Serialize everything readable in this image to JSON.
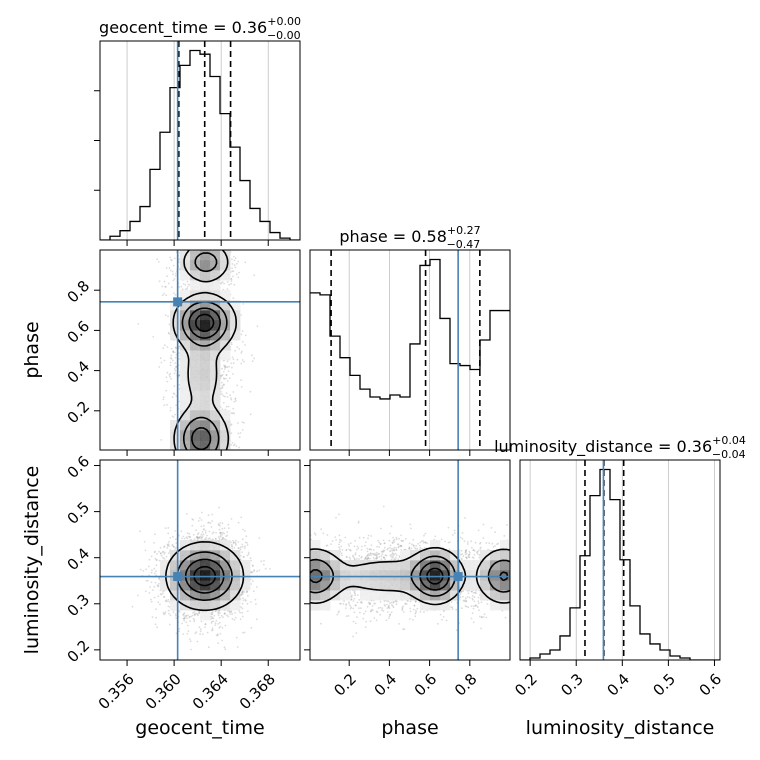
{
  "chart_data": {
    "type": "corner",
    "parameters": [
      "geocent_time",
      "phase",
      "luminosity_distance"
    ],
    "truths": {
      "geocent_time": 0.3603,
      "phase": 0.742,
      "luminosity_distance": 0.359
    },
    "colors": {
      "truth": "#4682b4",
      "hist": "#000000",
      "grid": "#c0c0c0",
      "density": "#000000"
    },
    "grid": true,
    "titles": [
      {
        "param": "geocent_time",
        "label": "geocent_time = 0.36",
        "upper": "+0.00",
        "lower": "−0.00"
      },
      {
        "param": "phase",
        "label": "phase = 0.58",
        "upper": "+0.27",
        "lower": "−0.47"
      },
      {
        "param": "luminosity_distance",
        "label": "luminosity_distance = 0.36",
        "upper": "+0.04",
        "lower": "−0.04"
      }
    ],
    "axes": {
      "geocent_time": {
        "range": [
          0.3537,
          0.3707
        ],
        "ticks": [
          0.356,
          0.36,
          0.364,
          0.368
        ],
        "tick_labels": [
          "0.356",
          "0.360",
          "0.364",
          "0.368"
        ]
      },
      "phase": {
        "range": [
          0.005,
          1.0
        ],
        "ticks": [
          0.2,
          0.4,
          0.6,
          0.8
        ],
        "tick_labels": [
          "0.2",
          "0.4",
          "0.6",
          "0.8"
        ]
      },
      "luminosity_distance": {
        "range": [
          0.178,
          0.612
        ],
        "ticks": [
          0.2,
          0.3,
          0.4,
          0.5,
          0.6
        ],
        "tick_labels": [
          "0.2",
          "0.3",
          "0.4",
          "0.5",
          "0.6"
        ]
      }
    },
    "marginals": [
      {
        "param": "geocent_time",
        "edges": [
          0.3537,
          0.35455,
          0.3554,
          0.35625,
          0.3571,
          0.35795,
          0.3588,
          0.35965,
          0.3605,
          0.36135,
          0.3622,
          0.36305,
          0.3639,
          0.36475,
          0.3656,
          0.36645,
          0.3673,
          0.36815,
          0.369,
          0.36985,
          0.3707
        ],
        "counts": [
          0,
          2,
          5,
          10,
          18,
          38,
          58,
          82,
          94,
          102,
          100,
          88,
          68,
          50,
          32,
          17,
          10,
          4,
          1,
          0
        ],
        "quantiles": [
          0.3604,
          0.3626,
          0.3648
        ]
      },
      {
        "param": "phase",
        "edges": [
          0.005,
          0.05475,
          0.1045,
          0.15425,
          0.204,
          0.25375,
          0.3035,
          0.35325,
          0.403,
          0.45275,
          0.5025,
          0.55225,
          0.602,
          0.65175,
          0.7015,
          0.75125,
          0.801,
          0.85075,
          0.9005,
          0.95025,
          1.0
        ],
        "counts": [
          80,
          79,
          58,
          47,
          38,
          31,
          27,
          26,
          28,
          27,
          54,
          94,
          97,
          67,
          44,
          43,
          41,
          56,
          71,
          71
        ],
        "quantiles": [
          0.11,
          0.58,
          0.85
        ]
      },
      {
        "param": "luminosity_distance",
        "edges": [
          0.178,
          0.1997,
          0.2214,
          0.2431,
          0.2648,
          0.2865,
          0.3082,
          0.3299,
          0.3516,
          0.3733,
          0.395,
          0.4167,
          0.4384,
          0.4601,
          0.4818,
          0.5035,
          0.5252,
          0.5469,
          0.5686,
          0.5903,
          0.612
        ],
        "counts": [
          0,
          1,
          3,
          5,
          12,
          26,
          52,
          82,
          95,
          80,
          50,
          27,
          13,
          8,
          5,
          2,
          1,
          0,
          0,
          0
        ],
        "quantiles": [
          0.319,
          0.36,
          0.403
        ]
      }
    ],
    "pairs": [
      {
        "x": "geocent_time",
        "y": "phase",
        "cloud": [
          {
            "cx": 0.3626,
            "cy": 0.5,
            "sx": 0.0014,
            "sy": 0.28,
            "n": 1600
          },
          {
            "cx": 0.3625,
            "cy": 0.07,
            "sx": 0.0012,
            "sy": 0.06,
            "n": 500
          },
          {
            "cx": 0.3624,
            "cy": 0.93,
            "sx": 0.0012,
            "sy": 0.05,
            "n": 500
          }
        ],
        "blobs": [
          {
            "cx": 0.3627,
            "cy": 0.94,
            "sx": 0.0011,
            "sy": 0.055,
            "w": 0.5
          },
          {
            "cx": 0.3626,
            "cy": 0.64,
            "sx": 0.0013,
            "sy": 0.07,
            "w": 1.0
          },
          {
            "cx": 0.3624,
            "cy": 0.38,
            "sx": 0.0011,
            "sy": 0.12,
            "w": 0.22
          },
          {
            "cx": 0.3623,
            "cy": 0.06,
            "sx": 0.0012,
            "sy": 0.08,
            "w": 0.75
          }
        ]
      },
      {
        "x": "geocent_time",
        "y": "luminosity_distance",
        "cloud": [
          {
            "cx": 0.3626,
            "cy": 0.36,
            "sx": 0.0017,
            "sy": 0.045,
            "n": 3000
          }
        ],
        "blobs": [
          {
            "cx": 0.3626,
            "cy": 0.36,
            "sx": 0.0016,
            "sy": 0.036,
            "w": 1.0
          }
        ]
      },
      {
        "x": "phase",
        "y": "luminosity_distance",
        "cloud": [
          {
            "cx": 0.5,
            "cy": 0.36,
            "sx": 0.3,
            "sy": 0.04,
            "n": 2600
          }
        ],
        "blobs": [
          {
            "cx": 0.63,
            "cy": 0.36,
            "sx": 0.065,
            "sy": 0.03,
            "w": 1.0
          },
          {
            "cx": 0.03,
            "cy": 0.36,
            "sx": 0.07,
            "sy": 0.032,
            "w": 0.7
          },
          {
            "cx": 0.97,
            "cy": 0.36,
            "sx": 0.07,
            "sy": 0.032,
            "w": 0.7
          },
          {
            "cx": 0.4,
            "cy": 0.36,
            "sx": 0.2,
            "sy": 0.028,
            "w": 0.25
          }
        ]
      }
    ]
  }
}
